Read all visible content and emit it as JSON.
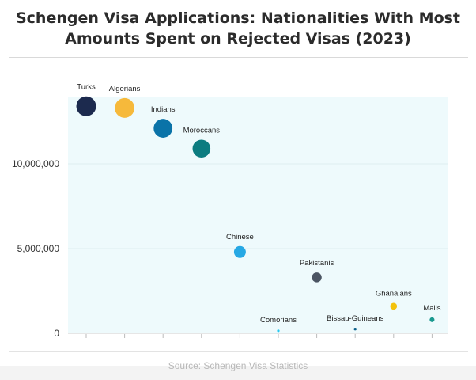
{
  "chart_data": {
    "type": "scatter",
    "title": "Schengen Visa Applications: Nationalities With Most Amounts Spent on Rejected Visas (2023)",
    "xlabel": "",
    "ylabel": "",
    "ylim": [
      0,
      14000000
    ],
    "yticks": [
      {
        "value": 0,
        "label": "0"
      },
      {
        "value": 5000000,
        "label": "5,000,000"
      },
      {
        "value": 10000000,
        "label": "10,000,000"
      }
    ],
    "grid": true,
    "legend": "none",
    "points": [
      {
        "label": "Turks",
        "y": 13400000,
        "color": "#1c2a4e"
      },
      {
        "label": "Algerians",
        "y": 13300000,
        "color": "#f6b93b"
      },
      {
        "label": "Indians",
        "y": 12100000,
        "color": "#0a73a8"
      },
      {
        "label": "Moroccans",
        "y": 10900000,
        "color": "#0c7c80"
      },
      {
        "label": "Chinese",
        "y": 4800000,
        "color": "#26a8e4"
      },
      {
        "label": "Comorians",
        "y": 150000,
        "color": "#28c8f0"
      },
      {
        "label": "Pakistanis",
        "y": 3300000,
        "color": "#4b5563"
      },
      {
        "label": "Bissau-Guineans",
        "y": 250000,
        "color": "#0a5f8a"
      },
      {
        "label": "Ghanaians",
        "y": 1600000,
        "color": "#f3c20d"
      },
      {
        "label": "Malis",
        "y": 800000,
        "color": "#19998f"
      }
    ]
  },
  "footer": {
    "source": "Source: Schengen Visa Statistics"
  }
}
